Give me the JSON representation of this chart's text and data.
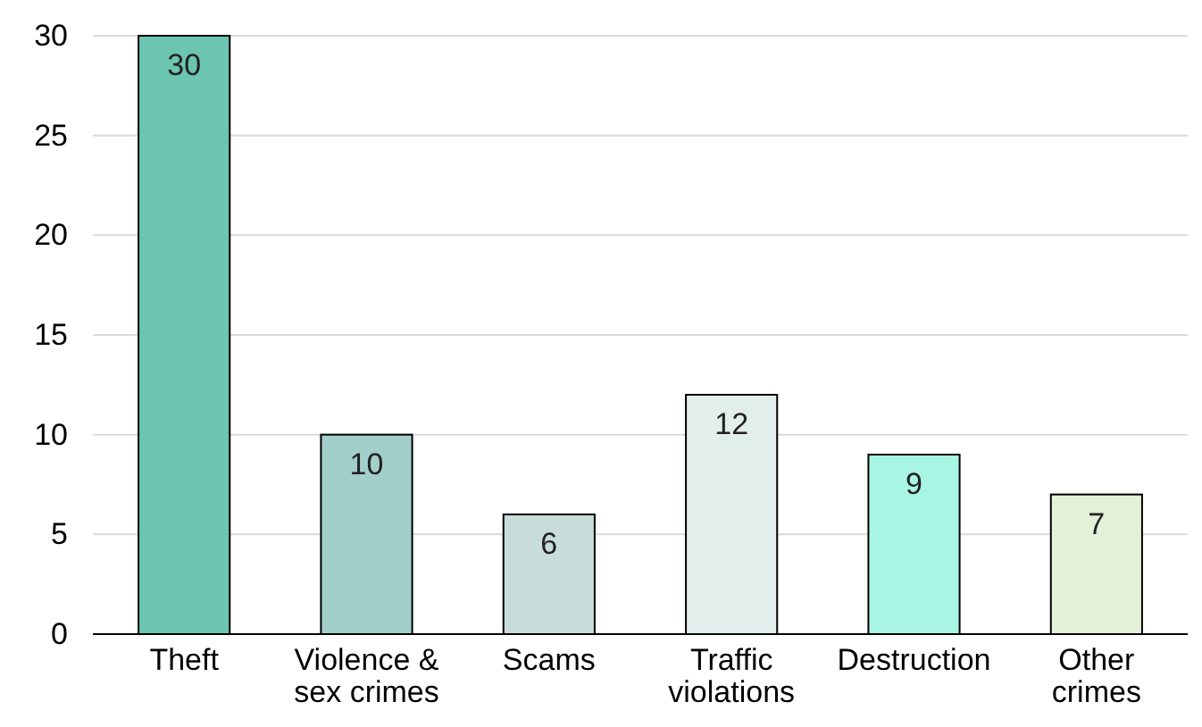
{
  "chart_data": {
    "type": "bar",
    "categories": [
      "Theft",
      "Violence & sex crimes",
      "Scams",
      "Traffic violations",
      "Destruction",
      "Other crimes"
    ],
    "values": [
      30,
      10,
      6,
      12,
      9,
      7
    ],
    "colors": [
      "#6cc5b0",
      "#a3cfca",
      "#c8dcda",
      "#e1eeec",
      "#a8f5e3",
      "#e4f0d8"
    ],
    "ylim": [
      0,
      30
    ],
    "yticks": [
      0,
      5,
      10,
      15,
      20,
      25,
      30
    ],
    "grid": "y",
    "data_labels": true
  }
}
